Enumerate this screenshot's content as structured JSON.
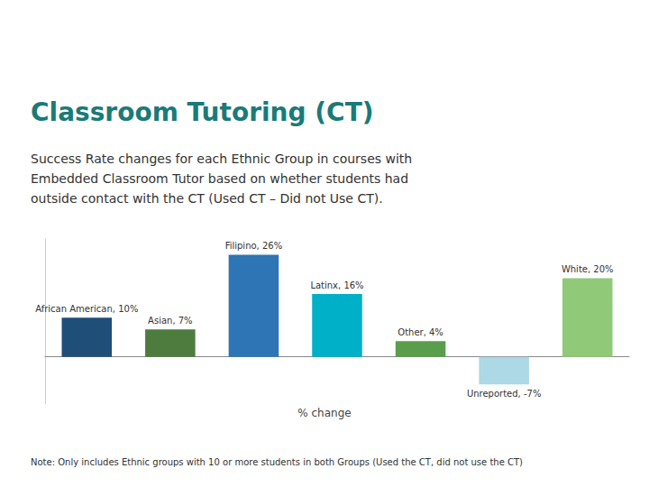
{
  "chart_data": {
    "type": "bar",
    "title": "Classroom Tutoring (CT)",
    "subtitle": "Success Rate changes for each Ethnic Group in courses with\nEmbedded Classroom Tutor based on whether students had\noutside contact with the CT (Used CT – Did not Use CT).",
    "note": "Note: Only includes Ethnic groups with 10 or more students in both Groups (Used the CT, did not use the CT)",
    "xlabel": "% change",
    "categories": [
      "African American",
      "Asian",
      "Filipino",
      "Latinx",
      "Other",
      "Unreported",
      "White"
    ],
    "values": [
      10,
      7,
      26,
      16,
      4,
      -7,
      20
    ],
    "value_labels": [
      "African American, 10%",
      "Asian, 7%",
      "Filipino, 26%",
      "Latinx, 16%",
      "Other, 4%",
      "Unreported, -7%",
      "White, 20%"
    ],
    "colors": [
      "#1f4e79",
      "#4e7c3f",
      "#2e75b6",
      "#00b0c8",
      "#5a9e4b",
      "#add8e6",
      "#90c978"
    ],
    "ylim": [
      -12,
      30
    ],
    "data_labels": true,
    "tick_labels": false,
    "grid": false
  }
}
